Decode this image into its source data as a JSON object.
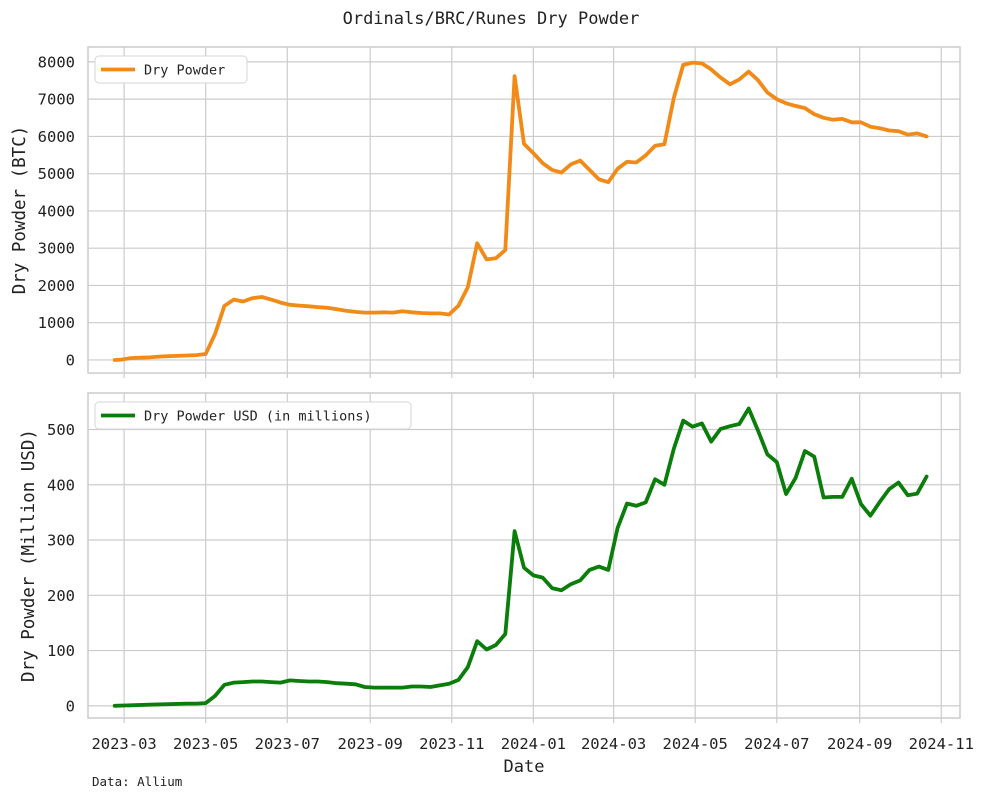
{
  "figure": {
    "title": "Ordinals/BRC/Runes Dry Powder",
    "xlabel": "Date",
    "source_note": "Data: Allium"
  },
  "colors": {
    "btc_line": "#f28a18",
    "usd_line": "#0b7d0b",
    "grid": "#cccccc",
    "text": "#222222"
  },
  "chart_data": [
    {
      "type": "line",
      "ylabel": "Dry Powder (BTC)",
      "ylim": [
        -350,
        8400
      ],
      "yticks": [
        0,
        1000,
        2000,
        3000,
        4000,
        5000,
        6000,
        7000,
        8000
      ],
      "xlim": [
        "2023-02-02",
        "2024-11-15"
      ],
      "xticks": [
        "2023-03",
        "2023-05",
        "2023-07",
        "2023-09",
        "2023-11",
        "2024-01",
        "2024-03",
        "2024-05",
        "2024-07",
        "2024-09",
        "2024-11"
      ],
      "grid": true,
      "legend": "top-left",
      "series": [
        {
          "name": "Dry Powder",
          "points": [
            [
              "2023-02-22",
              0
            ],
            [
              "2023-02-27",
              10
            ],
            [
              "2023-03-06",
              50
            ],
            [
              "2023-03-13",
              60
            ],
            [
              "2023-03-20",
              70
            ],
            [
              "2023-03-27",
              90
            ],
            [
              "2023-04-03",
              100
            ],
            [
              "2023-04-10",
              110
            ],
            [
              "2023-04-17",
              120
            ],
            [
              "2023-04-24",
              130
            ],
            [
              "2023-05-01",
              160
            ],
            [
              "2023-05-08",
              700
            ],
            [
              "2023-05-15",
              1450
            ],
            [
              "2023-05-22",
              1620
            ],
            [
              "2023-05-29",
              1570
            ],
            [
              "2023-06-05",
              1660
            ],
            [
              "2023-06-12",
              1690
            ],
            [
              "2023-06-19",
              1620
            ],
            [
              "2023-06-26",
              1540
            ],
            [
              "2023-07-03",
              1480
            ],
            [
              "2023-07-10",
              1460
            ],
            [
              "2023-07-17",
              1440
            ],
            [
              "2023-07-24",
              1420
            ],
            [
              "2023-07-31",
              1400
            ],
            [
              "2023-08-07",
              1360
            ],
            [
              "2023-08-14",
              1320
            ],
            [
              "2023-08-21",
              1290
            ],
            [
              "2023-08-28",
              1270
            ],
            [
              "2023-09-04",
              1270
            ],
            [
              "2023-09-11",
              1280
            ],
            [
              "2023-09-18",
              1270
            ],
            [
              "2023-09-25",
              1310
            ],
            [
              "2023-10-02",
              1280
            ],
            [
              "2023-10-09",
              1260
            ],
            [
              "2023-10-16",
              1250
            ],
            [
              "2023-10-23",
              1250
            ],
            [
              "2023-10-30",
              1220
            ],
            [
              "2023-11-06",
              1460
            ],
            [
              "2023-11-13",
              1950
            ],
            [
              "2023-11-20",
              3130
            ],
            [
              "2023-11-27",
              2700
            ],
            [
              "2023-12-04",
              2730
            ],
            [
              "2023-12-11",
              2950
            ],
            [
              "2023-12-18",
              7620
            ],
            [
              "2023-12-25",
              5800
            ],
            [
              "2024-01-01",
              5550
            ],
            [
              "2024-01-08",
              5280
            ],
            [
              "2024-01-15",
              5100
            ],
            [
              "2024-01-22",
              5030
            ],
            [
              "2024-01-29",
              5250
            ],
            [
              "2024-02-05",
              5350
            ],
            [
              "2024-02-12",
              5100
            ],
            [
              "2024-02-19",
              4850
            ],
            [
              "2024-02-26",
              4770
            ],
            [
              "2024-03-04",
              5130
            ],
            [
              "2024-03-11",
              5320
            ],
            [
              "2024-03-18",
              5300
            ],
            [
              "2024-03-25",
              5490
            ],
            [
              "2024-04-01",
              5750
            ],
            [
              "2024-04-08",
              5790
            ],
            [
              "2024-04-15",
              7030
            ],
            [
              "2024-04-22",
              7920
            ],
            [
              "2024-04-29",
              7980
            ],
            [
              "2024-05-06",
              7960
            ],
            [
              "2024-05-13",
              7800
            ],
            [
              "2024-05-20",
              7580
            ],
            [
              "2024-05-27",
              7400
            ],
            [
              "2024-06-03",
              7530
            ],
            [
              "2024-06-10",
              7740
            ],
            [
              "2024-06-17",
              7510
            ],
            [
              "2024-06-24",
              7180
            ],
            [
              "2024-07-01",
              7000
            ],
            [
              "2024-07-08",
              6890
            ],
            [
              "2024-07-15",
              6820
            ],
            [
              "2024-07-22",
              6760
            ],
            [
              "2024-07-29",
              6600
            ],
            [
              "2024-08-05",
              6500
            ],
            [
              "2024-08-12",
              6450
            ],
            [
              "2024-08-19",
              6470
            ],
            [
              "2024-08-26",
              6380
            ],
            [
              "2024-09-02",
              6380
            ],
            [
              "2024-09-09",
              6260
            ],
            [
              "2024-09-16",
              6220
            ],
            [
              "2024-09-23",
              6160
            ],
            [
              "2024-09-30",
              6140
            ],
            [
              "2024-10-07",
              6050
            ],
            [
              "2024-10-14",
              6080
            ],
            [
              "2024-10-21",
              6000
            ]
          ]
        }
      ]
    },
    {
      "type": "line",
      "ylabel": "Dry Powder (Million USD)",
      "ylim": [
        -22,
        566
      ],
      "yticks": [
        0,
        100,
        200,
        300,
        400,
        500
      ],
      "xlim": [
        "2023-02-02",
        "2024-11-15"
      ],
      "xticks": [
        "2023-03",
        "2023-05",
        "2023-07",
        "2023-09",
        "2023-11",
        "2024-01",
        "2024-03",
        "2024-05",
        "2024-07",
        "2024-09",
        "2024-11"
      ],
      "grid": true,
      "legend": "top-left",
      "series": [
        {
          "name": "Dry Powder USD (in millions)",
          "points": [
            [
              "2023-02-22",
              0
            ],
            [
              "2023-03-06",
              1
            ],
            [
              "2023-03-20",
              2
            ],
            [
              "2023-04-03",
              3
            ],
            [
              "2023-04-17",
              4
            ],
            [
              "2023-04-24",
              4
            ],
            [
              "2023-05-01",
              5
            ],
            [
              "2023-05-08",
              18
            ],
            [
              "2023-05-15",
              38
            ],
            [
              "2023-05-22",
              42
            ],
            [
              "2023-05-29",
              43
            ],
            [
              "2023-06-05",
              44
            ],
            [
              "2023-06-12",
              44
            ],
            [
              "2023-06-19",
              43
            ],
            [
              "2023-06-26",
              42
            ],
            [
              "2023-07-03",
              46
            ],
            [
              "2023-07-10",
              45
            ],
            [
              "2023-07-17",
              44
            ],
            [
              "2023-07-24",
              44
            ],
            [
              "2023-07-31",
              43
            ],
            [
              "2023-08-07",
              41
            ],
            [
              "2023-08-14",
              40
            ],
            [
              "2023-08-21",
              39
            ],
            [
              "2023-08-28",
              34
            ],
            [
              "2023-09-04",
              33
            ],
            [
              "2023-09-11",
              33
            ],
            [
              "2023-09-18",
              33
            ],
            [
              "2023-09-25",
              33
            ],
            [
              "2023-10-02",
              35
            ],
            [
              "2023-10-09",
              35
            ],
            [
              "2023-10-16",
              34
            ],
            [
              "2023-10-23",
              37
            ],
            [
              "2023-10-30",
              40
            ],
            [
              "2023-11-06",
              47
            ],
            [
              "2023-11-13",
              70
            ],
            [
              "2023-11-20",
              117
            ],
            [
              "2023-11-27",
              102
            ],
            [
              "2023-12-04",
              110
            ],
            [
              "2023-12-11",
              130
            ],
            [
              "2023-12-18",
              316
            ],
            [
              "2023-12-25",
              250
            ],
            [
              "2024-01-01",
              236
            ],
            [
              "2024-01-08",
              232
            ],
            [
              "2024-01-15",
              213
            ],
            [
              "2024-01-22",
              209
            ],
            [
              "2024-01-29",
              220
            ],
            [
              "2024-02-05",
              227
            ],
            [
              "2024-02-12",
              246
            ],
            [
              "2024-02-19",
              252
            ],
            [
              "2024-02-26",
              246
            ],
            [
              "2024-03-04",
              322
            ],
            [
              "2024-03-11",
              366
            ],
            [
              "2024-03-18",
              362
            ],
            [
              "2024-03-25",
              368
            ],
            [
              "2024-04-01",
              410
            ],
            [
              "2024-04-08",
              400
            ],
            [
              "2024-04-15",
              465
            ],
            [
              "2024-04-22",
              516
            ],
            [
              "2024-04-29",
              505
            ],
            [
              "2024-05-06",
              511
            ],
            [
              "2024-05-13",
              478
            ],
            [
              "2024-05-20",
              501
            ],
            [
              "2024-05-27",
              506
            ],
            [
              "2024-06-03",
              510
            ],
            [
              "2024-06-10",
              538
            ],
            [
              "2024-06-17",
              498
            ],
            [
              "2024-06-24",
              455
            ],
            [
              "2024-07-01",
              441
            ],
            [
              "2024-07-08",
              383
            ],
            [
              "2024-07-15",
              412
            ],
            [
              "2024-07-22",
              461
            ],
            [
              "2024-07-29",
              451
            ],
            [
              "2024-08-05",
              377
            ],
            [
              "2024-08-12",
              378
            ],
            [
              "2024-08-19",
              378
            ],
            [
              "2024-08-26",
              411
            ],
            [
              "2024-09-02",
              365
            ],
            [
              "2024-09-09",
              344
            ],
            [
              "2024-09-16",
              369
            ],
            [
              "2024-09-23",
              392
            ],
            [
              "2024-09-30",
              404
            ],
            [
              "2024-10-07",
              381
            ],
            [
              "2024-10-14",
              384
            ],
            [
              "2024-10-21",
              415
            ]
          ]
        }
      ]
    }
  ]
}
